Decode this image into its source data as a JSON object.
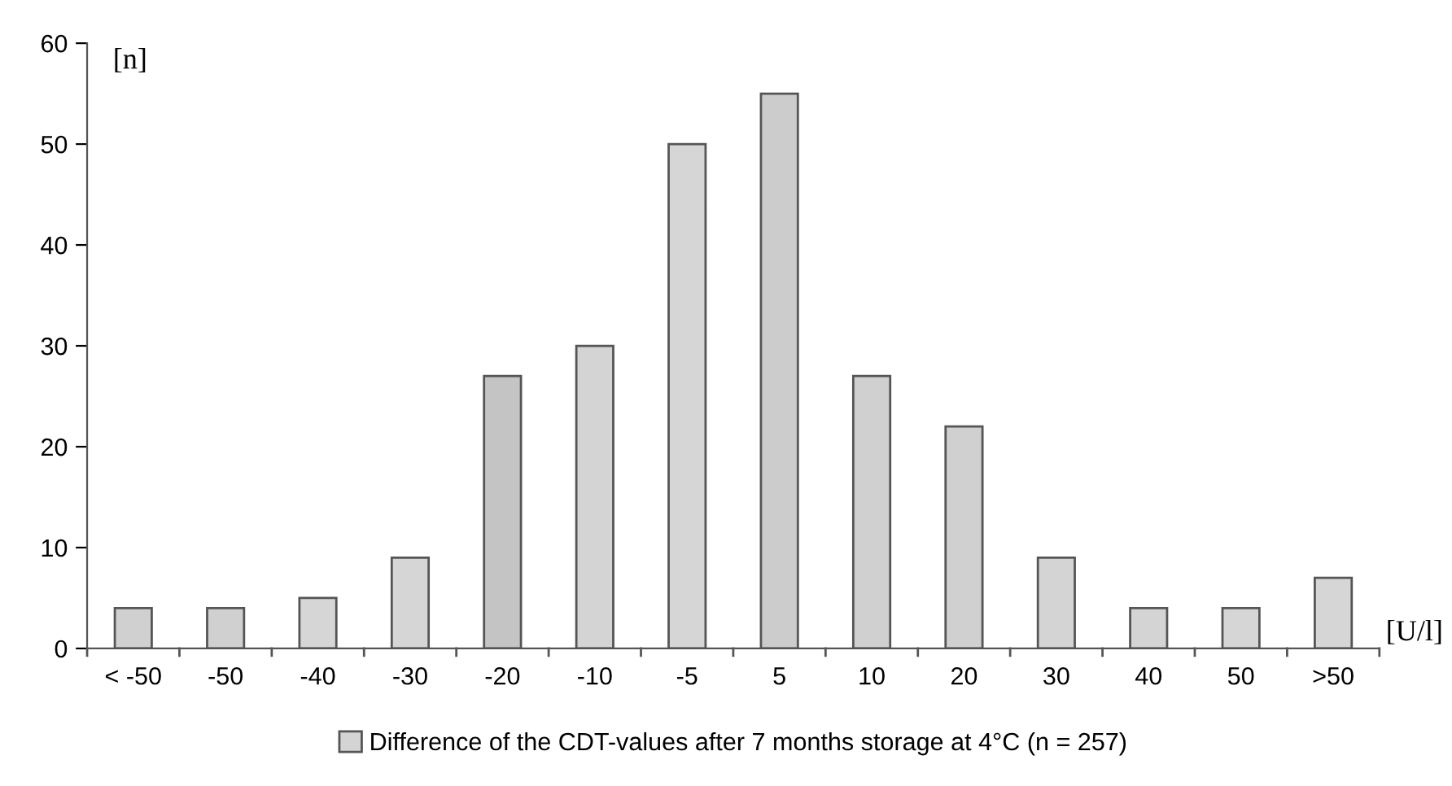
{
  "chart_data": {
    "type": "bar",
    "ylabel": "[n]",
    "xlabel": "[U/l]",
    "categories": [
      "< -50",
      "-50",
      "-40",
      "-30",
      "-20",
      "-10",
      "-5",
      "5",
      "10",
      "20",
      "30",
      "40",
      "50",
      ">50"
    ],
    "series": [
      {
        "name": "Difference of the CDT-values after 7 months storage at 4°C (n = 257)",
        "color": "#d4d4d4",
        "colors": [
          "#d0d0d0",
          "#d0d0d0",
          "#d6d6d6",
          "#d6d6d6",
          "#c4c4c4",
          "#d4d4d4",
          "#d6d6d6",
          "#cccccc",
          "#d0d0d0",
          "#d0d0d0",
          "#d4d4d4",
          "#d4d4d4",
          "#d6d6d6",
          "#d6d6d6"
        ],
        "values": [
          4,
          4,
          5,
          9,
          27,
          30,
          50,
          55,
          27,
          22,
          9,
          4,
          4,
          7
        ]
      }
    ],
    "ylim": [
      0,
      60
    ],
    "yticks": [
      0,
      10,
      20,
      30,
      40,
      50,
      60
    ],
    "grid": false,
    "legend": "bottom"
  }
}
